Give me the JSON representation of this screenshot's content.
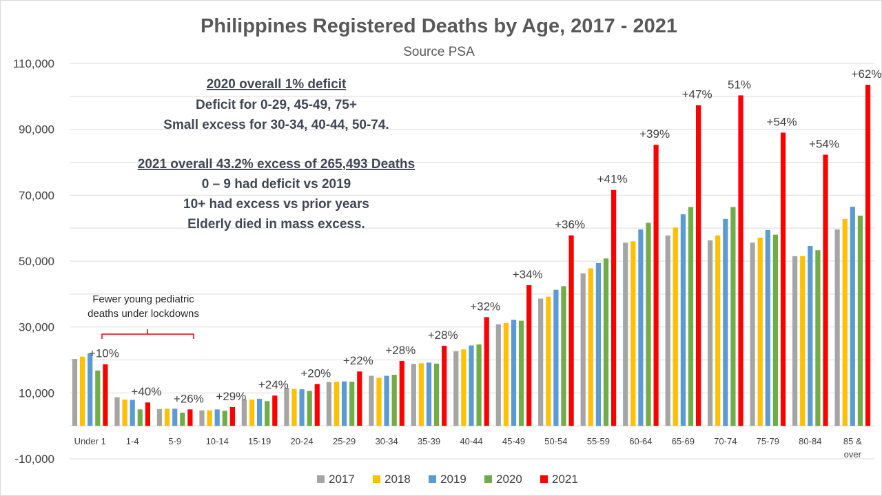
{
  "chart_data": {
    "type": "bar",
    "title": "Philippines Registered Deaths by Age, 2017 - 2021",
    "subtitle": "Source PSA",
    "ylim": [
      -10000,
      110000
    ],
    "yticks": [
      -10000,
      10000,
      30000,
      50000,
      70000,
      90000,
      110000
    ],
    "ytick_labels": [
      "-10,000",
      "10,000",
      "30,000",
      "50,000",
      "70,000",
      "90,000",
      "110,000"
    ],
    "grid": true,
    "legend_position": "bottom",
    "categories": [
      "Under 1",
      "1-4",
      "5-9",
      "10-14",
      "15-19",
      "20-24",
      "25-29",
      "30-34",
      "35-39",
      "40-44",
      "45-49",
      "50-54",
      "55-59",
      "60-64",
      "65-69",
      "70-74",
      "75-79",
      "80-84",
      "85 & over"
    ],
    "series": [
      {
        "name": "2017",
        "color": "#a5a5a5",
        "values": [
          20300,
          8700,
          5100,
          4700,
          8000,
          11500,
          13300,
          15200,
          18800,
          22700,
          30800,
          38600,
          46300,
          55600,
          57800,
          56300,
          55600,
          51500,
          59600
        ]
      },
      {
        "name": "2018",
        "color": "#ffc000",
        "values": [
          21000,
          8000,
          5200,
          4700,
          8000,
          11200,
          13400,
          14600,
          19000,
          23200,
          31200,
          39200,
          47800,
          56000,
          60200,
          57800,
          57100,
          51500,
          62800
        ]
      },
      {
        "name": "2019",
        "color": "#5b9bd5",
        "values": [
          22000,
          7900,
          5200,
          5000,
          8200,
          11100,
          13500,
          15200,
          19200,
          24400,
          32200,
          41300,
          49400,
          59600,
          64200,
          62800,
          59400,
          54600,
          66500
        ]
      },
      {
        "name": "2020",
        "color": "#70ad47",
        "values": [
          16800,
          5000,
          4000,
          4600,
          7500,
          10600,
          13400,
          15500,
          18900,
          24700,
          31900,
          42400,
          50800,
          61600,
          66400,
          66400,
          58000,
          53300,
          63800
        ]
      },
      {
        "name": "2021",
        "color": "#ff0000",
        "values": [
          18700,
          7100,
          5000,
          5700,
          9200,
          12700,
          16500,
          19700,
          24300,
          33000,
          42700,
          57800,
          71600,
          85300,
          97300,
          100300,
          89000,
          82300,
          103500
        ]
      }
    ],
    "change_labels": [
      "+10%",
      "+40%",
      "+26%",
      "+29%",
      "+24%",
      "+20%",
      "+22%",
      "+28%",
      "+28%",
      "+32%",
      "+34%",
      "+36%",
      "+41%",
      "+39%",
      "+47%",
      "51%",
      "+54%",
      "+54%",
      "+62%"
    ],
    "x_tick_lines": [
      [
        "Under 1"
      ],
      [
        "1-4"
      ],
      [
        "5-9"
      ],
      [
        "10-14"
      ],
      [
        "15-19"
      ],
      [
        "20-24"
      ],
      [
        "25-29"
      ],
      [
        "30-34"
      ],
      [
        "35-39"
      ],
      [
        "40-44"
      ],
      [
        "45-49"
      ],
      [
        "50-54"
      ],
      [
        "55-59"
      ],
      [
        "60-64"
      ],
      [
        "65-69"
      ],
      [
        "70-74"
      ],
      [
        "75-79"
      ],
      [
        "80-84"
      ],
      [
        "85 &",
        "over"
      ]
    ],
    "annotations": {
      "heading_2020": "2020 overall 1% deficit",
      "lines_2020": [
        "Deficit for 0-29, 45-49, 75+",
        "Small excess for 30-34, 40-44, 50-74."
      ],
      "heading_2021": "2021 overall 43.2% excess of 265,493 Deaths",
      "lines_2021": [
        "0 – 9 had deficit vs 2019",
        "10+ had excess vs prior years",
        "Elderly died in mass excess."
      ],
      "pediatric": [
        "Fewer young pediatric",
        "deaths under lockdowns"
      ]
    }
  }
}
